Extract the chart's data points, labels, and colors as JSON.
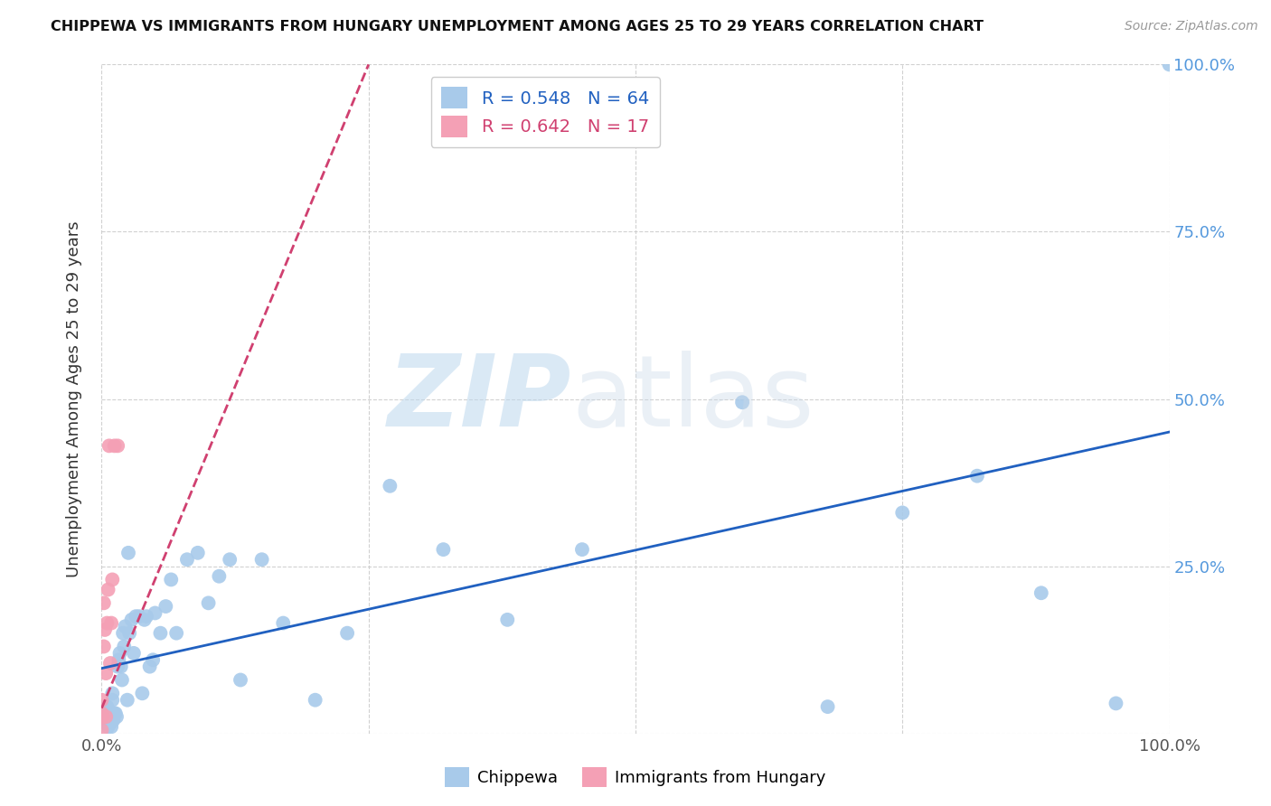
{
  "title": "CHIPPEWA VS IMMIGRANTS FROM HUNGARY UNEMPLOYMENT AMONG AGES 25 TO 29 YEARS CORRELATION CHART",
  "source": "Source: ZipAtlas.com",
  "ylabel": "Unemployment Among Ages 25 to 29 years",
  "chippewa_color": "#A8CAEA",
  "hungary_color": "#F4A0B5",
  "chippewa_line_color": "#2060C0",
  "hungary_line_color": "#D04070",
  "chippewa_x": [
    0.002,
    0.003,
    0.004,
    0.005,
    0.005,
    0.006,
    0.007,
    0.007,
    0.008,
    0.008,
    0.009,
    0.009,
    0.01,
    0.01,
    0.011,
    0.012,
    0.013,
    0.014,
    0.015,
    0.016,
    0.017,
    0.018,
    0.019,
    0.02,
    0.021,
    0.022,
    0.024,
    0.025,
    0.026,
    0.028,
    0.03,
    0.032,
    0.035,
    0.038,
    0.04,
    0.042,
    0.045,
    0.048,
    0.05,
    0.055,
    0.06,
    0.065,
    0.07,
    0.08,
    0.09,
    0.1,
    0.11,
    0.12,
    0.13,
    0.15,
    0.17,
    0.2,
    0.23,
    0.27,
    0.32,
    0.38,
    0.45,
    0.6,
    0.68,
    0.75,
    0.82,
    0.88,
    0.95,
    1.0
  ],
  "chippewa_y": [
    0.02,
    0.035,
    0.015,
    0.025,
    0.04,
    0.01,
    0.02,
    0.03,
    0.015,
    0.025,
    0.01,
    0.03,
    0.05,
    0.06,
    0.02,
    0.03,
    0.03,
    0.025,
    0.1,
    0.11,
    0.12,
    0.1,
    0.08,
    0.15,
    0.13,
    0.16,
    0.05,
    0.27,
    0.15,
    0.17,
    0.12,
    0.175,
    0.175,
    0.06,
    0.17,
    0.175,
    0.1,
    0.11,
    0.18,
    0.15,
    0.19,
    0.23,
    0.15,
    0.26,
    0.27,
    0.195,
    0.235,
    0.26,
    0.08,
    0.26,
    0.165,
    0.05,
    0.15,
    0.37,
    0.275,
    0.17,
    0.275,
    0.495,
    0.04,
    0.33,
    0.385,
    0.21,
    0.045,
    1.0
  ],
  "hungary_x": [
    0.0,
    0.0,
    0.0,
    0.001,
    0.002,
    0.002,
    0.003,
    0.004,
    0.004,
    0.005,
    0.006,
    0.007,
    0.008,
    0.009,
    0.01,
    0.012,
    0.015
  ],
  "hungary_y": [
    0.03,
    0.05,
    0.005,
    0.025,
    0.13,
    0.195,
    0.155,
    0.025,
    0.09,
    0.165,
    0.215,
    0.43,
    0.105,
    0.165,
    0.23,
    0.43,
    0.43
  ],
  "xlim": [
    0.0,
    1.0
  ],
  "ylim": [
    0.0,
    1.0
  ],
  "xticks": [
    0.0,
    0.25,
    0.5,
    0.75,
    1.0
  ],
  "xticklabels": [
    "0.0%",
    "",
    "",
    "",
    "100.0%"
  ],
  "yticks": [
    0.0,
    0.25,
    0.5,
    0.75,
    1.0
  ],
  "right_yticklabels": [
    "",
    "25.0%",
    "50.0%",
    "75.0%",
    "100.0%"
  ]
}
